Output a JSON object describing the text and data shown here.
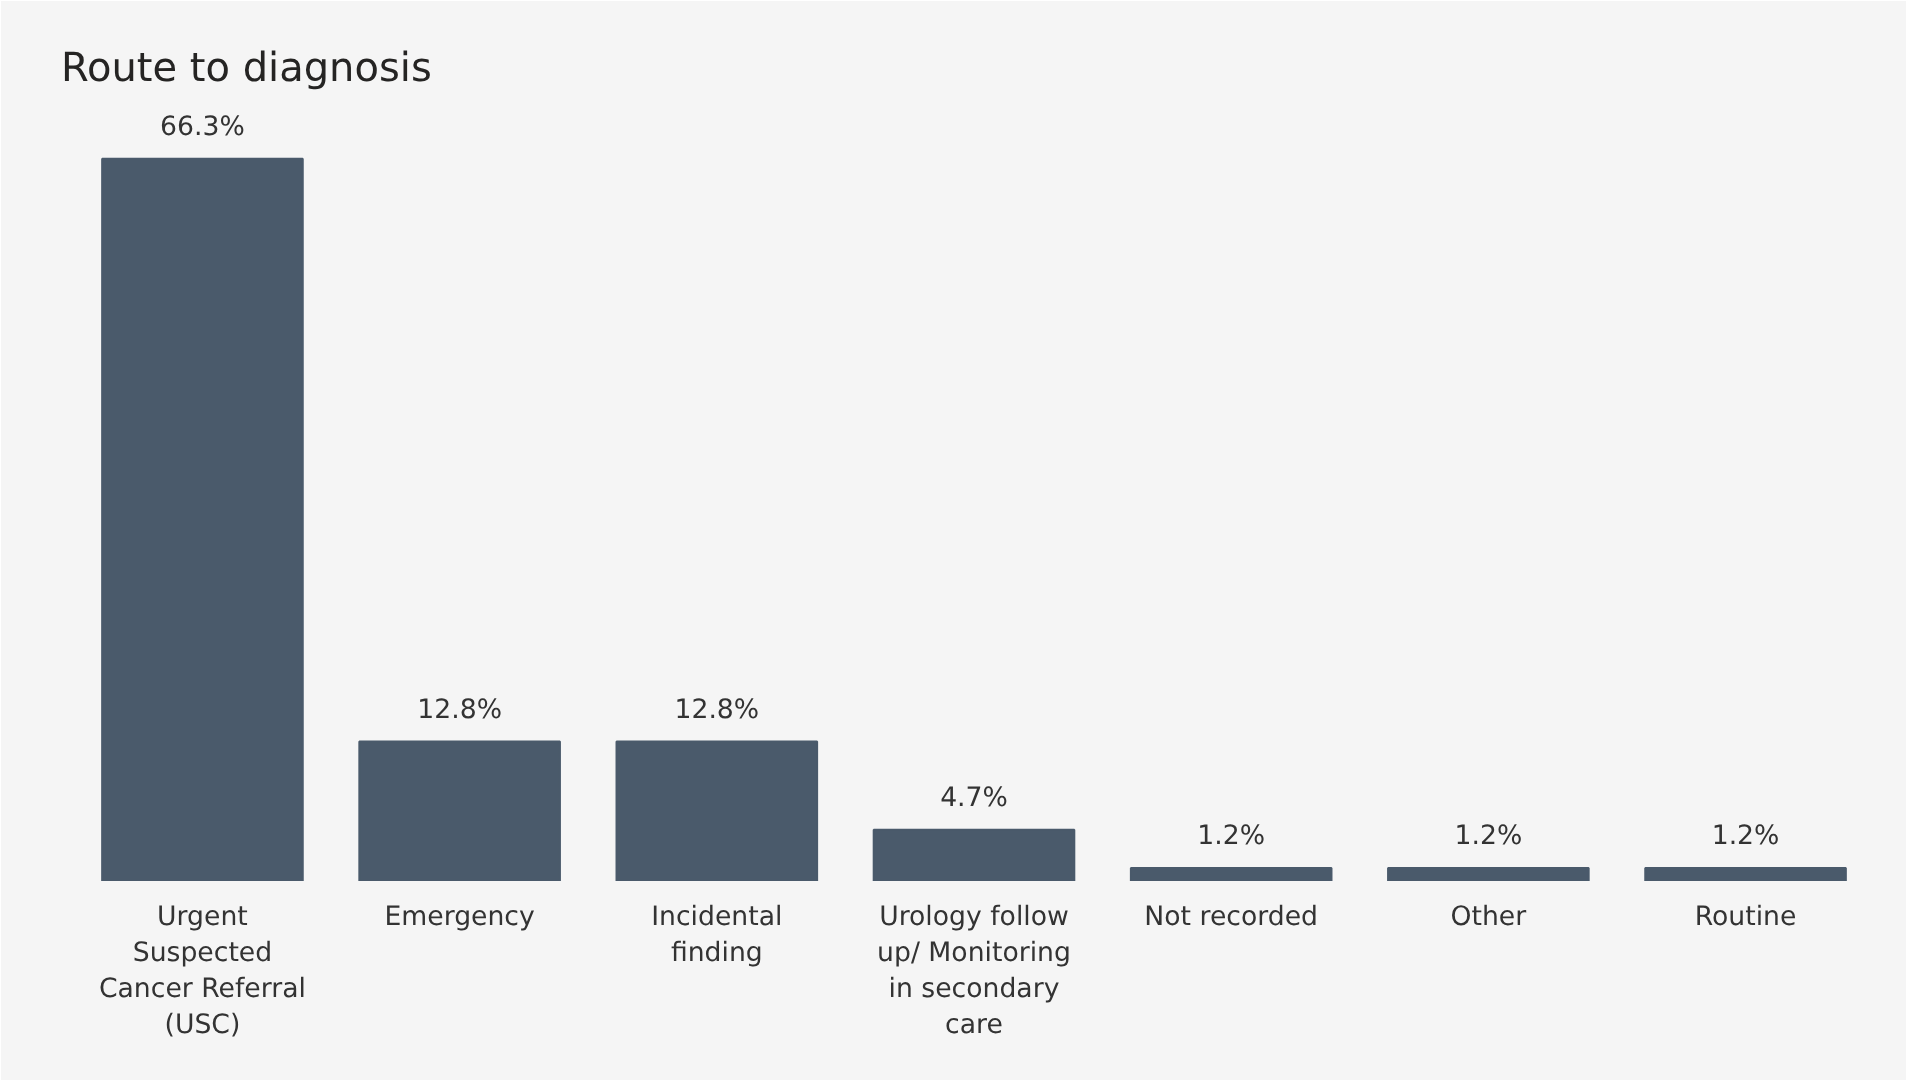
{
  "chart_data": {
    "type": "bar",
    "title": "Route to diagnosis",
    "categories": [
      "Urgent Suspected Cancer Referral (USC)",
      "Emergency",
      "Incidental finding",
      "Urology follow up/ Monitoring in secondary care",
      "Not recorded",
      "Other",
      "Routine"
    ],
    "values": [
      66.3,
      12.8,
      12.8,
      4.7,
      1.2,
      1.2,
      1.2
    ],
    "value_labels": [
      "66.3%",
      "12.8%",
      "12.8%",
      "4.7%",
      "1.2%",
      "1.2%",
      "1.2%"
    ],
    "color": "#4a5a6b",
    "grid": false
  }
}
